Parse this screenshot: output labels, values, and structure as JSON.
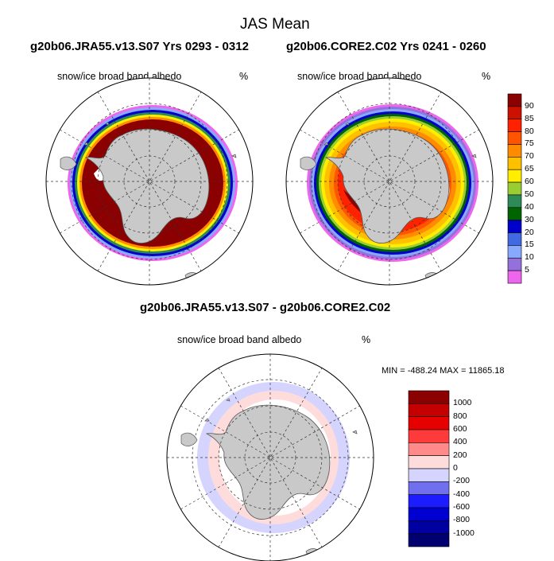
{
  "figure": {
    "title": "JAS Mean",
    "left_case": "g20b06.JRA55.v13.S07  Yrs 0293 - 0312",
    "right_case": "g20b06.CORE2.C02  Yrs 0241 - 0260",
    "diff_title": "g20b06.JRA55.v13.S07 - g20b06.CORE2.C02"
  },
  "panels": {
    "left": {
      "variable": "snow/ice broad band albedo",
      "units": "%"
    },
    "right": {
      "variable": "snow/ice broad band albedo",
      "units": "%"
    },
    "diff": {
      "variable": "snow/ice broad band albedo",
      "units": "%",
      "stats": "MIN = -488.24 MAX = 11865.18"
    }
  },
  "colorbar_main": {
    "labels": [
      "90",
      "85",
      "80",
      "75",
      "70",
      "65",
      "60",
      "50",
      "40",
      "30",
      "20",
      "15",
      "10",
      "5"
    ],
    "colors": [
      "#8b0000",
      "#cc1100",
      "#ff2200",
      "#ff5500",
      "#ff8c00",
      "#ffc000",
      "#ffee00",
      "#9acd32",
      "#2e8b57",
      "#006400",
      "#0000cd",
      "#4169e1",
      "#87aaff",
      "#9370db",
      "#ee66ee"
    ]
  },
  "colorbar_diff": {
    "labels": [
      "1000",
      "800",
      "600",
      "400",
      "200",
      "0",
      "-200",
      "-400",
      "-600",
      "-800",
      "-1000"
    ],
    "colors": [
      "#8b0000",
      "#c40000",
      "#e60000",
      "#ff3a3a",
      "#ff8a8a",
      "#ffdcdc",
      "#d4d4ff",
      "#7070ee",
      "#1c1cff",
      "#0000d0",
      "#0000a0",
      "#000070"
    ]
  }
}
